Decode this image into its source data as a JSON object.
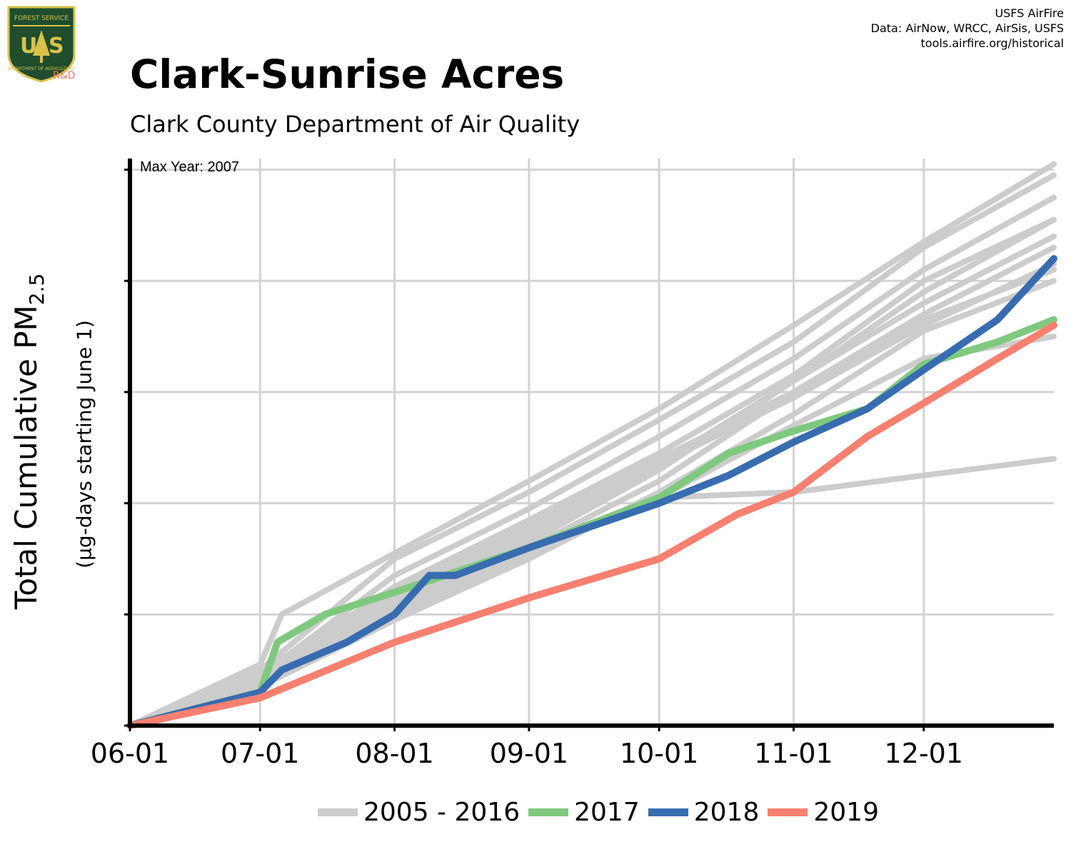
{
  "header": {
    "title": "Clark-Sunrise Acres",
    "subtitle": "Clark County Department of Air Quality",
    "credits": [
      "USFS AirFire",
      "Data: AirNow, WRCC, AirSis, USFS",
      "tools.airfire.org/historical"
    ],
    "logo": {
      "top_text": "FOREST SERVICE",
      "letters": "US",
      "bottom_text": "DEPARTMENT OF AGRICULTURE",
      "rd": "R&D",
      "icon": "forest-service-shield-icon"
    }
  },
  "colors": {
    "historical": "#cccccc",
    "y2017": "#7fc97f",
    "y2018": "#386cb0",
    "y2019": "#f88070",
    "grid": "#d3d3d3",
    "axis": "#000000"
  },
  "chart_data": {
    "type": "line",
    "annotation": "Max Year: 2007",
    "ylabel": "Total Cumulative PM",
    "ylabel_sub": "2.5",
    "ylabel2": "(µg-days starting June 1)",
    "x_tick_labels": [
      "06-01",
      "07-01",
      "08-01",
      "09-01",
      "10-01",
      "11-01",
      "12-01"
    ],
    "x_tick_days": [
      0,
      30,
      61,
      92,
      122,
      153,
      183
    ],
    "xlim": [
      0,
      213
    ],
    "ylim": [
      0,
      5.1
    ],
    "y_ticks": [
      0,
      1,
      2,
      3,
      4,
      5
    ],
    "y_tick_labels_shown": false,
    "grid": true,
    "legend": [
      {
        "label": "2005 - 2016",
        "color": "#cccccc"
      },
      {
        "label": "2017",
        "color": "#7fc97f"
      },
      {
        "label": "2018",
        "color": "#386cb0"
      },
      {
        "label": "2019",
        "color": "#f88070"
      }
    ],
    "historical_series": [
      {
        "x": [
          0,
          30,
          35,
          61,
          92,
          122,
          153,
          183,
          213
        ],
        "y": [
          0,
          0.55,
          1.0,
          1.55,
          2.2,
          2.85,
          3.6,
          4.35,
          5.05
        ]
      },
      {
        "x": [
          0,
          30,
          61,
          92,
          122,
          153,
          183,
          213
        ],
        "y": [
          0,
          0.5,
          1.5,
          2.1,
          2.75,
          3.45,
          4.3,
          4.95
        ]
      },
      {
        "x": [
          0,
          30,
          61,
          92,
          122,
          153,
          183,
          213
        ],
        "y": [
          0,
          0.45,
          1.35,
          1.95,
          2.6,
          3.3,
          4.1,
          4.75
        ]
      },
      {
        "x": [
          0,
          30,
          61,
          92,
          122,
          153,
          183,
          213
        ],
        "y": [
          0,
          0.45,
          1.25,
          1.85,
          2.45,
          3.15,
          4.0,
          4.55
        ]
      },
      {
        "x": [
          0,
          30,
          61,
          92,
          122,
          153,
          183,
          213
        ],
        "y": [
          0,
          0.42,
          1.2,
          1.8,
          2.4,
          3.0,
          3.7,
          4.3
        ]
      },
      {
        "x": [
          0,
          30,
          61,
          92,
          122,
          153,
          183,
          213
        ],
        "y": [
          0,
          0.4,
          1.15,
          1.75,
          2.35,
          2.95,
          3.6,
          4.15
        ]
      },
      {
        "x": [
          0,
          30,
          61,
          92,
          122,
          153,
          183,
          213
        ],
        "y": [
          0,
          0.4,
          1.1,
          1.7,
          2.35,
          3.1,
          3.9,
          4.55
        ]
      },
      {
        "x": [
          0,
          30,
          61,
          92,
          122,
          153,
          183,
          213
        ],
        "y": [
          0,
          0.38,
          1.05,
          1.65,
          2.3,
          3.1,
          3.8,
          4.4
        ]
      },
      {
        "x": [
          0,
          30,
          61,
          92,
          122,
          153,
          183,
          213
        ],
        "y": [
          0,
          0.38,
          1.0,
          1.6,
          2.2,
          3.0,
          3.65,
          4.1
        ]
      },
      {
        "x": [
          0,
          30,
          61,
          92,
          122,
          153,
          183,
          213
        ],
        "y": [
          0,
          0.35,
          0.95,
          1.5,
          2.1,
          2.8,
          3.55,
          4.0
        ]
      },
      {
        "x": [
          0,
          30,
          61,
          92,
          122,
          153,
          183,
          213
        ],
        "y": [
          0,
          0.35,
          1.0,
          1.55,
          2.05,
          2.7,
          3.3,
          3.5
        ]
      },
      {
        "x": [
          0,
          30,
          61,
          92,
          122,
          153,
          183,
          213
        ],
        "y": [
          0,
          0.35,
          0.95,
          1.55,
          2.05,
          2.1,
          2.25,
          2.4
        ]
      }
    ],
    "series": [
      {
        "name": "2017",
        "x": [
          0,
          30,
          34,
          45,
          61,
          92,
          122,
          138,
          153,
          170,
          183,
          200,
          213
        ],
        "y": [
          0,
          0.3,
          0.75,
          1.0,
          1.2,
          1.6,
          2.05,
          2.45,
          2.65,
          2.85,
          3.25,
          3.45,
          3.65
        ]
      },
      {
        "name": "2018",
        "x": [
          0,
          30,
          35,
          50,
          61,
          69,
          75,
          92,
          122,
          138,
          153,
          170,
          183,
          200,
          213
        ],
        "y": [
          0,
          0.3,
          0.5,
          0.75,
          1.0,
          1.35,
          1.35,
          1.6,
          2.0,
          2.25,
          2.55,
          2.85,
          3.2,
          3.65,
          4.2
        ]
      },
      {
        "name": "2019",
        "x": [
          0,
          30,
          61,
          92,
          122,
          140,
          153,
          170,
          183,
          200,
          213
        ],
        "y": [
          0,
          0.25,
          0.75,
          1.15,
          1.5,
          1.9,
          2.1,
          2.6,
          2.9,
          3.3,
          3.6
        ]
      }
    ]
  }
}
